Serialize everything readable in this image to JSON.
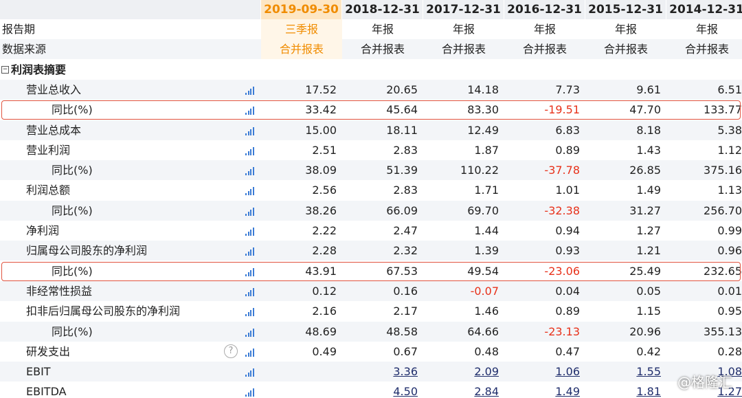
{
  "header": {
    "columns": [
      "2019-09-30",
      "2018-12-31",
      "2017-12-31",
      "2016-12-31",
      "2015-12-31",
      "2014-12-31"
    ]
  },
  "rows": [
    {
      "label": "报告期",
      "cells": [
        "三季报",
        "年报",
        "年报",
        "年报",
        "年报",
        "年报"
      ]
    },
    {
      "label": "数据来源",
      "cells": [
        "合并报表",
        "合并报表",
        "合并报表",
        "合并报表",
        "合并报表",
        "合并报表"
      ]
    },
    {
      "label": "利润表摘要"
    },
    {
      "label": "营业总收入",
      "cells": [
        "17.52",
        "20.65",
        "14.18",
        "7.73",
        "9.61",
        "6.51"
      ]
    },
    {
      "label": "同比(%)",
      "cells": [
        "33.42",
        "45.64",
        "83.30",
        "-19.51",
        "47.70",
        "133.77"
      ]
    },
    {
      "label": "营业总成本",
      "cells": [
        "15.00",
        "18.11",
        "12.49",
        "6.83",
        "8.18",
        "5.38"
      ]
    },
    {
      "label": "营业利润",
      "cells": [
        "2.51",
        "2.83",
        "1.87",
        "0.89",
        "1.43",
        "1.12"
      ]
    },
    {
      "label": "同比(%)",
      "cells": [
        "38.09",
        "51.39",
        "110.22",
        "-37.78",
        "26.85",
        "375.16"
      ]
    },
    {
      "label": "利润总额",
      "cells": [
        "2.56",
        "2.83",
        "1.71",
        "1.01",
        "1.49",
        "1.13"
      ]
    },
    {
      "label": "同比(%)",
      "cells": [
        "38.26",
        "66.09",
        "69.70",
        "-32.38",
        "31.27",
        "256.70"
      ]
    },
    {
      "label": "净利润",
      "cells": [
        "2.22",
        "2.47",
        "1.44",
        "0.94",
        "1.27",
        "0.99"
      ]
    },
    {
      "label": "归属母公司股东的净利润",
      "cells": [
        "2.28",
        "2.32",
        "1.39",
        "0.93",
        "1.21",
        "0.96"
      ]
    },
    {
      "label": "同比(%)",
      "cells": [
        "43.91",
        "67.53",
        "49.54",
        "-23.06",
        "25.49",
        "232.65"
      ]
    },
    {
      "label": "非经常性损益",
      "cells": [
        "0.12",
        "0.16",
        "-0.07",
        "0.04",
        "0.05",
        "0.01"
      ]
    },
    {
      "label": "扣非后归属母公司股东的净利润",
      "cells": [
        "2.16",
        "2.17",
        "1.46",
        "0.89",
        "1.15",
        "0.95"
      ]
    },
    {
      "label": "同比(%)",
      "cells": [
        "48.69",
        "48.58",
        "64.66",
        "-23.13",
        "20.96",
        "355.13"
      ]
    },
    {
      "label": "研发支出",
      "cells": [
        "0.49",
        "0.67",
        "0.48",
        "0.47",
        "0.42",
        "0.28"
      ]
    },
    {
      "label": "EBIT",
      "cells": [
        null,
        "3.36",
        "2.09",
        "1.06",
        "1.55",
        "1.08"
      ]
    },
    {
      "label": "EBITDA",
      "cells": [
        null,
        "4.50",
        "2.84",
        "1.49",
        "1.81",
        "1.27"
      ]
    }
  ],
  "watermark": "@格隆汇"
}
